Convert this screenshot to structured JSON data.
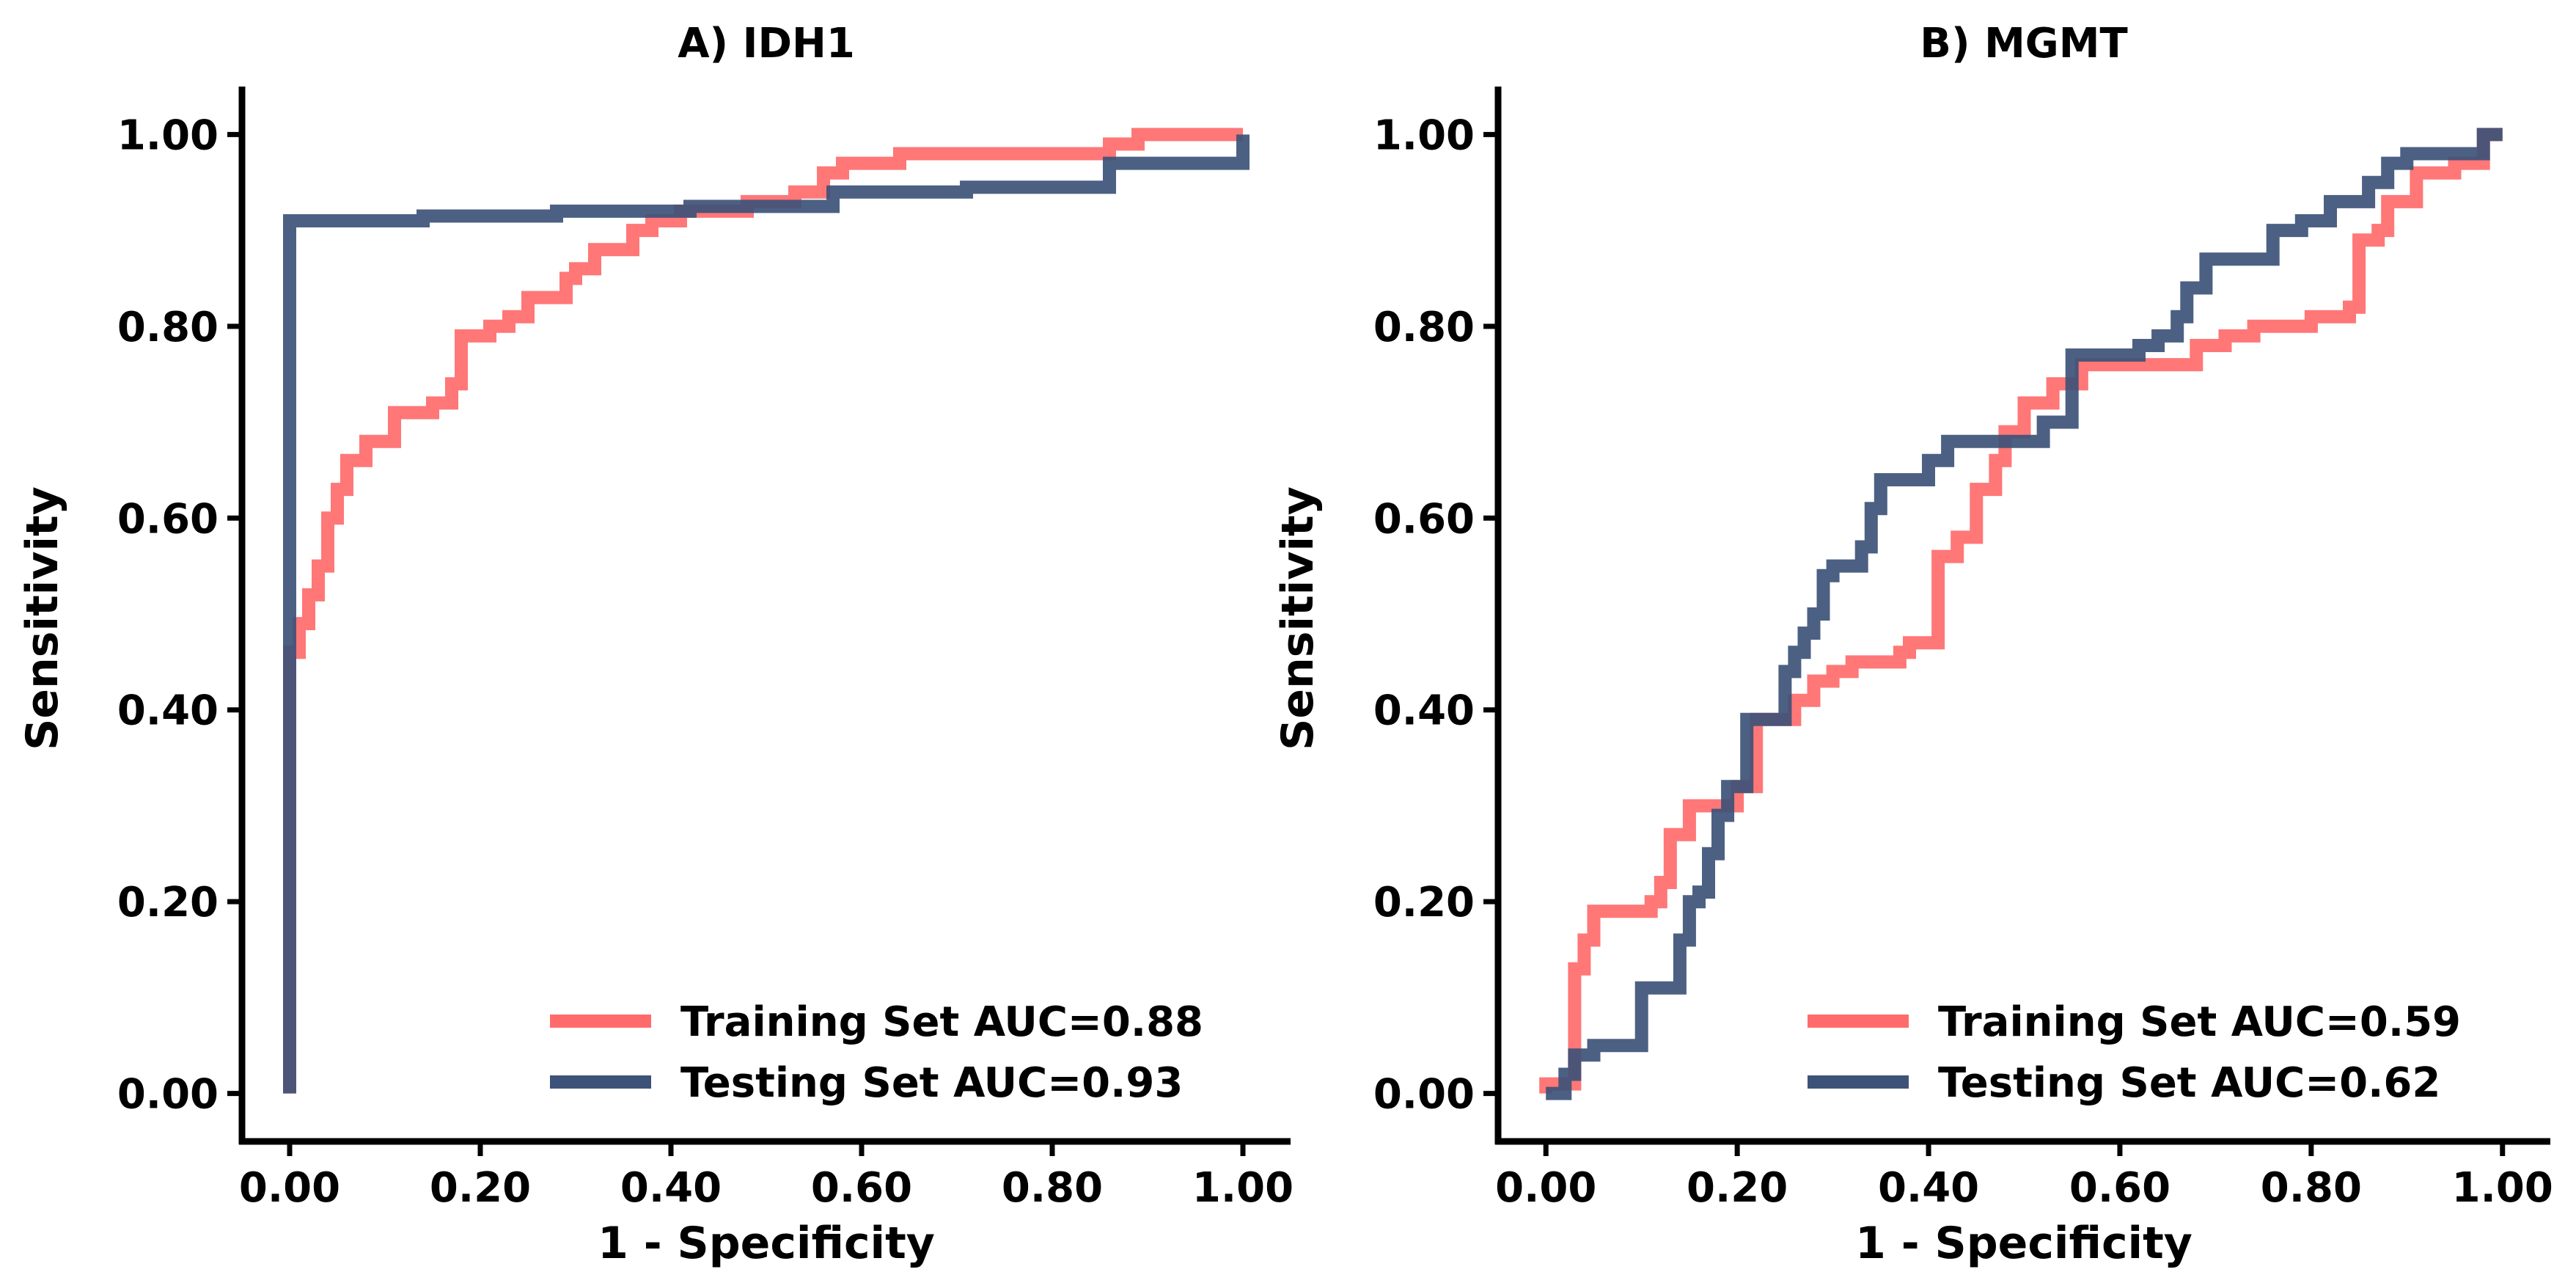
{
  "figure": {
    "panels": [
      {
        "id": "A",
        "title": "A) IDH1",
        "xlabel": "1 - Specificity",
        "ylabel": "Sensitivity"
      },
      {
        "id": "B",
        "title": "B) MGMT",
        "xlabel": "1 - Specificity",
        "ylabel": "Sensitivity"
      }
    ],
    "colors": {
      "training": "#ff6b6b",
      "testing": "#3d5278",
      "axis": "#000000"
    }
  },
  "chart_data": [
    {
      "type": "line",
      "title": "A) IDH1",
      "xlabel": "1 - Specificity",
      "ylabel": "Sensitivity",
      "xlim": [
        -0.05,
        1.05
      ],
      "ylim": [
        -0.05,
        1.05
      ],
      "xticks": [
        "0.00",
        "0.20",
        "0.40",
        "0.60",
        "0.80",
        "1.00"
      ],
      "yticks": [
        "0.00",
        "0.20",
        "0.40",
        "0.60",
        "0.80",
        "1.00"
      ],
      "grid": false,
      "legend_position": "bottom-right",
      "series": [
        {
          "name": "Training Set AUC=0.88",
          "color": "#ff6b6b",
          "points": [
            [
              0,
              0
            ],
            [
              0,
              0.46
            ],
            [
              0.01,
              0.46
            ],
            [
              0.01,
              0.49
            ],
            [
              0.02,
              0.49
            ],
            [
              0.02,
              0.52
            ],
            [
              0.03,
              0.52
            ],
            [
              0.03,
              0.55
            ],
            [
              0.04,
              0.55
            ],
            [
              0.04,
              0.6
            ],
            [
              0.05,
              0.6
            ],
            [
              0.05,
              0.63
            ],
            [
              0.06,
              0.63
            ],
            [
              0.06,
              0.66
            ],
            [
              0.08,
              0.66
            ],
            [
              0.08,
              0.68
            ],
            [
              0.11,
              0.68
            ],
            [
              0.11,
              0.71
            ],
            [
              0.15,
              0.71
            ],
            [
              0.15,
              0.72
            ],
            [
              0.17,
              0.72
            ],
            [
              0.17,
              0.74
            ],
            [
              0.18,
              0.74
            ],
            [
              0.18,
              0.76
            ],
            [
              0.18,
              0.79
            ],
            [
              0.21,
              0.79
            ],
            [
              0.21,
              0.8
            ],
            [
              0.23,
              0.8
            ],
            [
              0.23,
              0.81
            ],
            [
              0.25,
              0.81
            ],
            [
              0.25,
              0.83
            ],
            [
              0.29,
              0.83
            ],
            [
              0.29,
              0.85
            ],
            [
              0.3,
              0.85
            ],
            [
              0.3,
              0.86
            ],
            [
              0.32,
              0.86
            ],
            [
              0.32,
              0.88
            ],
            [
              0.36,
              0.88
            ],
            [
              0.36,
              0.9
            ],
            [
              0.38,
              0.9
            ],
            [
              0.38,
              0.91
            ],
            [
              0.41,
              0.91
            ],
            [
              0.41,
              0.92
            ],
            [
              0.43,
              0.92
            ],
            [
              0.48,
              0.92
            ],
            [
              0.48,
              0.93
            ],
            [
              0.53,
              0.93
            ],
            [
              0.53,
              0.94
            ],
            [
              0.56,
              0.94
            ],
            [
              0.56,
              0.96
            ],
            [
              0.58,
              0.96
            ],
            [
              0.58,
              0.97
            ],
            [
              0.64,
              0.97
            ],
            [
              0.64,
              0.98
            ],
            [
              0.86,
              0.98
            ],
            [
              0.86,
              0.99
            ],
            [
              0.89,
              0.99
            ],
            [
              0.89,
              1.0
            ],
            [
              1.0,
              1.0
            ]
          ]
        },
        {
          "name": "Testing Set AUC=0.93",
          "color": "#3d5278",
          "points": [
            [
              0,
              0
            ],
            [
              0,
              0.91
            ],
            [
              0.14,
              0.91
            ],
            [
              0.14,
              0.915
            ],
            [
              0.28,
              0.915
            ],
            [
              0.28,
              0.92
            ],
            [
              0.42,
              0.92
            ],
            [
              0.42,
              0.925
            ],
            [
              0.57,
              0.925
            ],
            [
              0.57,
              0.94
            ],
            [
              0.71,
              0.94
            ],
            [
              0.71,
              0.945
            ],
            [
              0.86,
              0.945
            ],
            [
              0.86,
              0.97
            ],
            [
              1.0,
              0.97
            ],
            [
              1.0,
              1.0
            ]
          ]
        }
      ]
    },
    {
      "type": "line",
      "title": "B) MGMT",
      "xlabel": "1 - Specificity",
      "ylabel": "Sensitivity",
      "xlim": [
        -0.05,
        1.05
      ],
      "ylim": [
        -0.05,
        1.05
      ],
      "xticks": [
        "0.00",
        "0.20",
        "0.40",
        "0.60",
        "0.80",
        "1.00"
      ],
      "yticks": [
        "0.00",
        "0.20",
        "0.40",
        "0.60",
        "0.80",
        "1.00"
      ],
      "grid": false,
      "legend_position": "bottom-right",
      "series": [
        {
          "name": "Training Set AUC=0.59",
          "color": "#ff6b6b",
          "points": [
            [
              0,
              0
            ],
            [
              0,
              0.01
            ],
            [
              0.03,
              0.01
            ],
            [
              0.03,
              0.13
            ],
            [
              0.04,
              0.13
            ],
            [
              0.04,
              0.16
            ],
            [
              0.05,
              0.16
            ],
            [
              0.05,
              0.19
            ],
            [
              0.11,
              0.19
            ],
            [
              0.11,
              0.2
            ],
            [
              0.12,
              0.2
            ],
            [
              0.12,
              0.22
            ],
            [
              0.13,
              0.22
            ],
            [
              0.13,
              0.27
            ],
            [
              0.15,
              0.27
            ],
            [
              0.15,
              0.3
            ],
            [
              0.2,
              0.3
            ],
            [
              0.2,
              0.32
            ],
            [
              0.22,
              0.32
            ],
            [
              0.22,
              0.39
            ],
            [
              0.26,
              0.39
            ],
            [
              0.26,
              0.41
            ],
            [
              0.28,
              0.41
            ],
            [
              0.28,
              0.43
            ],
            [
              0.3,
              0.43
            ],
            [
              0.3,
              0.44
            ],
            [
              0.32,
              0.44
            ],
            [
              0.32,
              0.45
            ],
            [
              0.37,
              0.45
            ],
            [
              0.37,
              0.46
            ],
            [
              0.38,
              0.46
            ],
            [
              0.38,
              0.47
            ],
            [
              0.41,
              0.47
            ],
            [
              0.41,
              0.51
            ],
            [
              0.41,
              0.56
            ],
            [
              0.43,
              0.56
            ],
            [
              0.43,
              0.58
            ],
            [
              0.45,
              0.58
            ],
            [
              0.45,
              0.63
            ],
            [
              0.47,
              0.63
            ],
            [
              0.47,
              0.66
            ],
            [
              0.48,
              0.66
            ],
            [
              0.48,
              0.69
            ],
            [
              0.5,
              0.69
            ],
            [
              0.5,
              0.72
            ],
            [
              0.53,
              0.72
            ],
            [
              0.53,
              0.74
            ],
            [
              0.56,
              0.74
            ],
            [
              0.56,
              0.76
            ],
            [
              0.68,
              0.76
            ],
            [
              0.68,
              0.78
            ],
            [
              0.71,
              0.78
            ],
            [
              0.71,
              0.79
            ],
            [
              0.74,
              0.79
            ],
            [
              0.74,
              0.8
            ],
            [
              0.8,
              0.8
            ],
            [
              0.8,
              0.81
            ],
            [
              0.84,
              0.81
            ],
            [
              0.84,
              0.82
            ],
            [
              0.85,
              0.82
            ],
            [
              0.85,
              0.89
            ],
            [
              0.87,
              0.89
            ],
            [
              0.87,
              0.9
            ],
            [
              0.88,
              0.9
            ],
            [
              0.88,
              0.93
            ],
            [
              0.91,
              0.93
            ],
            [
              0.91,
              0.96
            ],
            [
              0.95,
              0.96
            ],
            [
              0.95,
              0.97
            ],
            [
              0.98,
              0.97
            ],
            [
              0.98,
              1.0
            ],
            [
              1.0,
              1.0
            ]
          ]
        },
        {
          "name": "Testing Set AUC=0.62",
          "color": "#3d5278",
          "points": [
            [
              0,
              0
            ],
            [
              0.02,
              0
            ],
            [
              0.02,
              0.02
            ],
            [
              0.03,
              0.02
            ],
            [
              0.03,
              0.04
            ],
            [
              0.05,
              0.04
            ],
            [
              0.05,
              0.05
            ],
            [
              0.1,
              0.05
            ],
            [
              0.1,
              0.11
            ],
            [
              0.14,
              0.11
            ],
            [
              0.14,
              0.16
            ],
            [
              0.15,
              0.16
            ],
            [
              0.15,
              0.2
            ],
            [
              0.16,
              0.2
            ],
            [
              0.16,
              0.21
            ],
            [
              0.17,
              0.21
            ],
            [
              0.17,
              0.25
            ],
            [
              0.18,
              0.25
            ],
            [
              0.18,
              0.29
            ],
            [
              0.19,
              0.29
            ],
            [
              0.19,
              0.32
            ],
            [
              0.21,
              0.32
            ],
            [
              0.21,
              0.39
            ],
            [
              0.25,
              0.39
            ],
            [
              0.25,
              0.44
            ],
            [
              0.26,
              0.44
            ],
            [
              0.26,
              0.46
            ],
            [
              0.27,
              0.46
            ],
            [
              0.27,
              0.48
            ],
            [
              0.28,
              0.48
            ],
            [
              0.28,
              0.5
            ],
            [
              0.29,
              0.5
            ],
            [
              0.29,
              0.54
            ],
            [
              0.3,
              0.54
            ],
            [
              0.3,
              0.55
            ],
            [
              0.33,
              0.55
            ],
            [
              0.33,
              0.57
            ],
            [
              0.34,
              0.57
            ],
            [
              0.34,
              0.61
            ],
            [
              0.35,
              0.61
            ],
            [
              0.35,
              0.64
            ],
            [
              0.4,
              0.64
            ],
            [
              0.4,
              0.66
            ],
            [
              0.42,
              0.66
            ],
            [
              0.42,
              0.68
            ],
            [
              0.52,
              0.68
            ],
            [
              0.52,
              0.7
            ],
            [
              0.55,
              0.7
            ],
            [
              0.55,
              0.77
            ],
            [
              0.62,
              0.77
            ],
            [
              0.62,
              0.78
            ],
            [
              0.64,
              0.78
            ],
            [
              0.64,
              0.79
            ],
            [
              0.66,
              0.79
            ],
            [
              0.66,
              0.81
            ],
            [
              0.67,
              0.81
            ],
            [
              0.67,
              0.84
            ],
            [
              0.69,
              0.84
            ],
            [
              0.69,
              0.87
            ],
            [
              0.76,
              0.87
            ],
            [
              0.76,
              0.9
            ],
            [
              0.79,
              0.9
            ],
            [
              0.79,
              0.91
            ],
            [
              0.82,
              0.91
            ],
            [
              0.82,
              0.93
            ],
            [
              0.86,
              0.93
            ],
            [
              0.86,
              0.95
            ],
            [
              0.88,
              0.95
            ],
            [
              0.88,
              0.97
            ],
            [
              0.9,
              0.97
            ],
            [
              0.9,
              0.98
            ],
            [
              0.98,
              0.98
            ],
            [
              0.98,
              1.0
            ],
            [
              1.0,
              1.0
            ]
          ]
        }
      ]
    }
  ]
}
